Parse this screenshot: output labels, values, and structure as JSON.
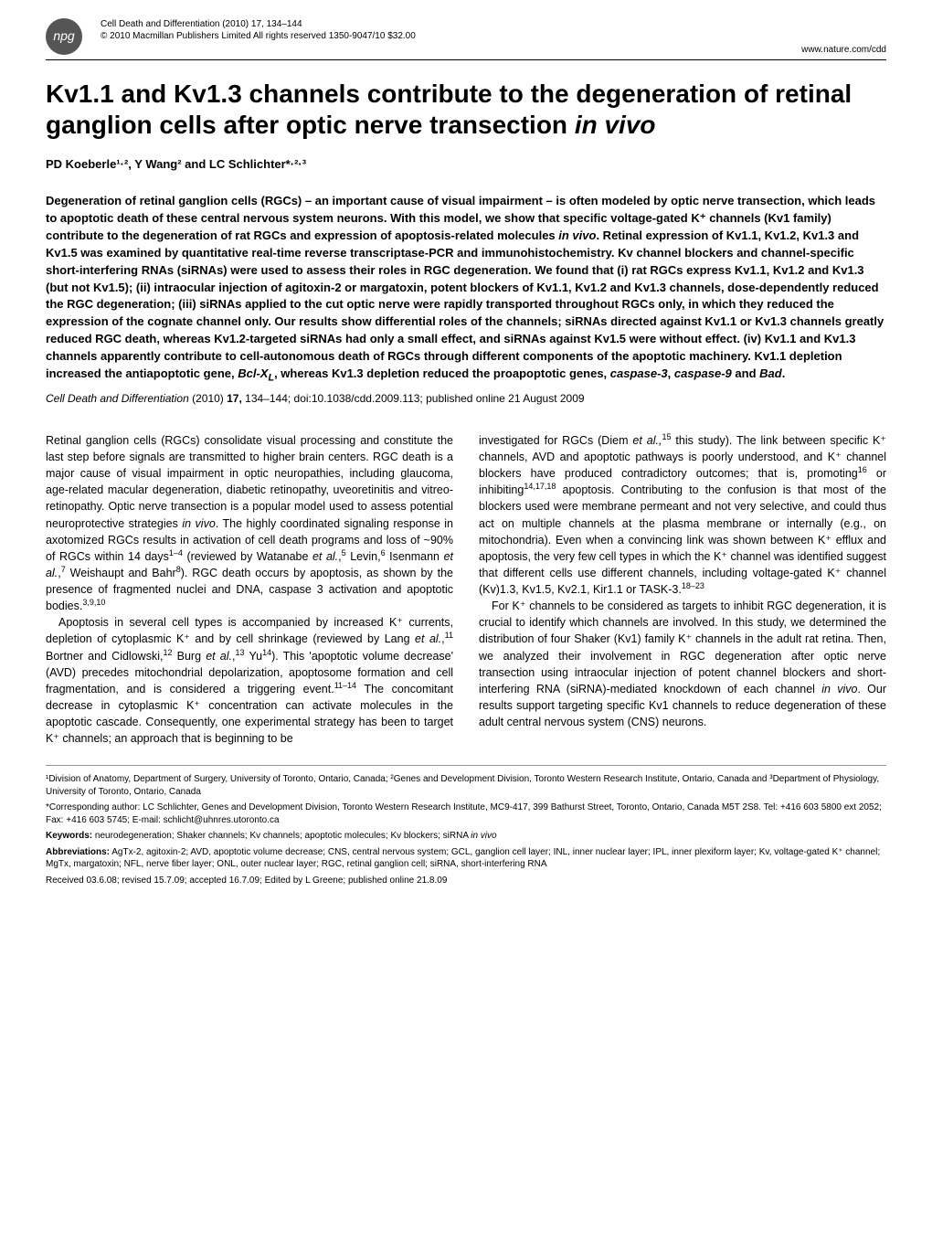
{
  "header": {
    "logo_text": "npg",
    "journal_line": "Cell Death and Differentiation (2010) 17, 134–144",
    "copyright_line": "© 2010 Macmillan Publishers Limited   All rights reserved 1350-9047/10 $32.00",
    "url_line": "www.nature.com/cdd"
  },
  "title": {
    "line1": "Kv1.1 and Kv1.3 channels contribute to the degeneration of retinal ganglion cells after optic nerve transection ",
    "line1_italic": "in vivo"
  },
  "authors": "PD Koeberle¹·², Y Wang² and LC Schlichter*·²·³",
  "abstract": {
    "text_part1": "Degeneration of retinal ganglion cells (RGCs) – an important cause of visual impairment – is often modeled by optic nerve transection, which leads to apoptotic death of these central nervous system neurons. With this model, we show that specific voltage-gated K⁺ channels (Kv1 family) contribute to the degeneration of rat RGCs and expression of apoptosis-related molecules ",
    "italic1": "in vivo",
    "text_part2": ". Retinal expression of Kv1.1, Kv1.2, Kv1.3 and Kv1.5 was examined by quantitative real-time reverse transcriptase-PCR and immunohistochemistry. Kv channel blockers and channel-specific short-interfering RNAs (siRNAs) were used to assess their roles in RGC degeneration. We found that (i) rat RGCs express Kv1.1, Kv1.2 and Kv1.3 (but not Kv1.5); (ii) intraocular injection of agitoxin-2 or margatoxin, potent blockers of Kv1.1, Kv1.2 and Kv1.3 channels, dose-dependently reduced the RGC degeneration; (iii) siRNAs applied to the cut optic nerve were rapidly transported throughout RGCs only, in which they reduced the expression of the cognate channel only. Our results show differential roles of the channels; siRNAs directed against Kv1.1 or Kv1.3 channels greatly reduced RGC death, whereas Kv1.2-targeted siRNAs had only a small effect, and siRNAs against Kv1.5 were without effect. (iv) Kv1.1 and Kv1.3 channels apparently contribute to cell-autonomous death of RGCs through different components of the apoptotic machinery. Kv1.1 depletion increased the antiapoptotic gene, ",
    "italic2": "Bcl-X",
    "sub1": "L",
    "text_part3": ", whereas Kv1.3 depletion reduced the proapoptotic genes, ",
    "italic3": "caspase-3",
    "text_part4": ", ",
    "italic4": "caspase-9",
    "text_part5": " and ",
    "italic5": "Bad",
    "text_part6": "."
  },
  "citation": {
    "journal": "Cell Death and Differentiation",
    "year_vol": " (2010) ",
    "volume": "17,",
    "pages": " 134–144; doi:10.1038/cdd.2009.113; published online 21 August 2009"
  },
  "body": {
    "col1_p1": "Retinal ganglion cells (RGCs) consolidate visual processing and constitute the last step before signals are transmitted to higher brain centers. RGC death is a major cause of visual impairment in optic neuropathies, including glaucoma, age-related macular degeneration, diabetic retinopathy, uveoretinitis and vitreo-retinopathy. Optic nerve transection is a popular model used to assess potential neuroprotective strategies ",
    "col1_p1_italic1": "in vivo",
    "col1_p1b": ". The highly coordinated signaling response in axotomized RGCs results in activation of cell death programs and loss of ~90% of RGCs within 14 days",
    "col1_p1_sup1": "1–4",
    "col1_p1c": " (reviewed by Watanabe ",
    "col1_p1_italic2": "et al.",
    "col1_p1d": ",",
    "col1_p1_sup2": "5",
    "col1_p1e": " Levin,",
    "col1_p1_sup3": "6",
    "col1_p1f": " Isenmann ",
    "col1_p1_italic3": "et al.",
    "col1_p1g": ",",
    "col1_p1_sup4": "7",
    "col1_p1h": " Weishaupt and Bahr",
    "col1_p1_sup5": "8",
    "col1_p1i": "). RGC death occurs by apoptosis, as shown by the presence of fragmented nuclei and DNA, caspase 3 activation and apoptotic bodies.",
    "col1_p1_sup6": "3,9,10",
    "col1_p2a": "Apoptosis in several cell types is accompanied by increased K⁺ currents, depletion of cytoplasmic K⁺ and by cell shrinkage (reviewed by Lang ",
    "col1_p2_italic1": "et al.",
    "col1_p2b": ",",
    "col1_p2_sup1": "11",
    "col1_p2c": " Bortner and Cidlowski,",
    "col1_p2_sup2": "12",
    "col1_p2d": " Burg ",
    "col1_p2_italic2": "et al.",
    "col1_p2e": ",",
    "col1_p2_sup3": "13",
    "col1_p2f": " Yu",
    "col1_p2_sup4": "14",
    "col1_p2g": "). This 'apoptotic volume decrease' (AVD) precedes mitochondrial depolarization, apoptosome formation and cell fragmentation, and is considered a triggering event.",
    "col1_p2_sup5": "11–14",
    "col1_p2h": " The concomitant decrease in cytoplasmic K⁺ concentration can activate molecules in the apoptotic cascade. Consequently, one experimental strategy has been to target K⁺ channels; an approach that is beginning to be",
    "col2_p1a": "investigated for RGCs (Diem ",
    "col2_p1_italic1": "et al.,",
    "col2_p1_sup1": "15",
    "col2_p1b": " this study). The link between specific K⁺ channels, AVD and apoptotic pathways is poorly understood, and K⁺ channel blockers have produced contradictory outcomes; that is, promoting",
    "col2_p1_sup2": "16",
    "col2_p1c": " or inhibiting",
    "col2_p1_sup3": "14,17,18",
    "col2_p1d": " apoptosis. Contributing to the confusion is that most of the blockers used were membrane permeant and not very selective, and could thus act on multiple channels at the plasma membrane or internally (e.g., on mitochondria). Even when a convincing link was shown between K⁺ efflux and apoptosis, the very few cell types in which the K⁺ channel was identified suggest that different cells use different channels, including voltage-gated K⁺ channel (Kv)1.3, Kv1.5, Kv2.1, Kir1.1 or TASK-3.",
    "col2_p1_sup4": "18–23",
    "col2_p2a": "For K⁺ channels to be considered as targets to inhibit RGC degeneration, it is crucial to identify which channels are involved. In this study, we determined the distribution of four Shaker (Kv1) family K⁺ channels in the adult rat retina. Then, we analyzed their involvement in RGC degeneration after optic nerve transection using intraocular injection of potent channel blockers and short-interfering RNA (siRNA)-mediated knockdown of each channel ",
    "col2_p2_italic1": "in vivo",
    "col2_p2b": ". Our results support targeting specific Kv1 channels to reduce degeneration of these adult central nervous system (CNS) neurons."
  },
  "footnotes": {
    "affiliation": "¹Division of Anatomy, Department of Surgery, University of Toronto, Ontario, Canada; ²Genes and Development Division, Toronto Western Research Institute, Ontario, Canada and ³Department of Physiology, University of Toronto, Ontario, Canada",
    "corresponding": "*Corresponding author: LC Schlichter, Genes and Development Division, Toronto Western Research Institute, MC9-417, 399 Bathurst Street, Toronto, Ontario, Canada M5T 2S8. Tel: +416 603 5800 ext 2052; Fax: +416 603 5745; E-mail: schlicht@uhnres.utoronto.ca",
    "keywords_label": "Keywords:",
    "keywords_text": " neurodegeneration; Shaker channels; Kv channels; apoptotic molecules; Kv blockers; siRNA ",
    "keywords_italic": "in vivo",
    "abbrev_label": "Abbreviations:",
    "abbrev_text": " AgTx-2, agitoxin-2; AVD, apoptotic volume decrease; CNS, central nervous system; GCL, ganglion cell layer; INL, inner nuclear layer; IPL, inner plexiform layer; Kv, voltage-gated K⁺ channel; MgTx, margatoxin; NFL, nerve fiber layer; ONL, outer nuclear layer; RGC, retinal ganglion cell; siRNA, short-interfering RNA",
    "received": "Received 03.6.08; revised 15.7.09; accepted 16.7.09; Edited by L Greene; published online 21.8.09"
  }
}
